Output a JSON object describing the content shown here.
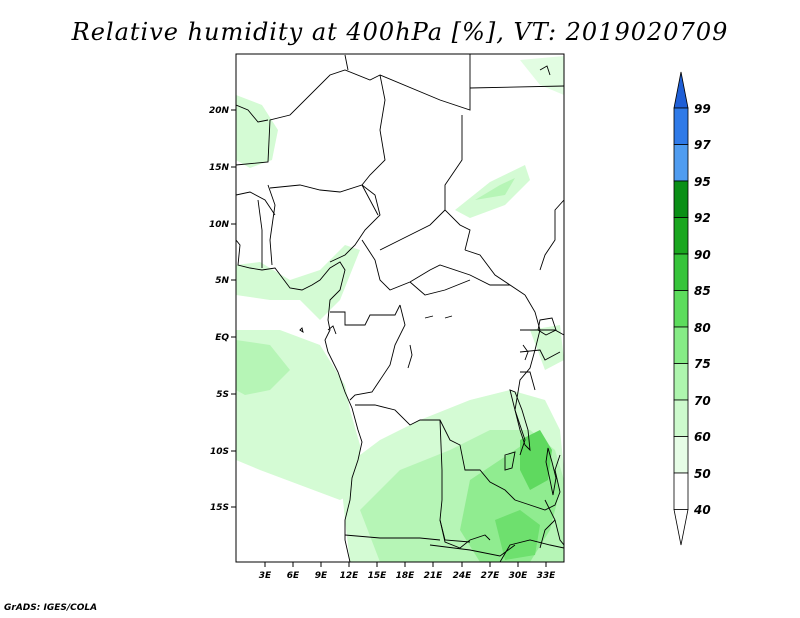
{
  "title": "Relative humidity at 400hPa [%], VT: 2019020709",
  "credit": "GrADS: IGES/COLA",
  "map": {
    "lat_labels": [
      "20N",
      "15N",
      "10N",
      "5N",
      "EQ",
      "5S",
      "10S",
      "15S"
    ],
    "lon_labels": [
      "3E",
      "6E",
      "9E",
      "12E",
      "15E",
      "18E",
      "21E",
      "24E",
      "27E",
      "30E",
      "33E"
    ]
  },
  "colorbar": {
    "levels": [
      "99",
      "97",
      "95",
      "92",
      "90",
      "85",
      "80",
      "75",
      "70",
      "60",
      "50",
      "40"
    ],
    "colors": [
      "#1f5fd6",
      "#2f7ae8",
      "#4f9cf0",
      "#0a8f16",
      "#1aa71f",
      "#36c43a",
      "#5cdc5c",
      "#86ec86",
      "#aef5ae",
      "#cdfacd",
      "#e6fde6",
      "#ffffff"
    ]
  }
}
